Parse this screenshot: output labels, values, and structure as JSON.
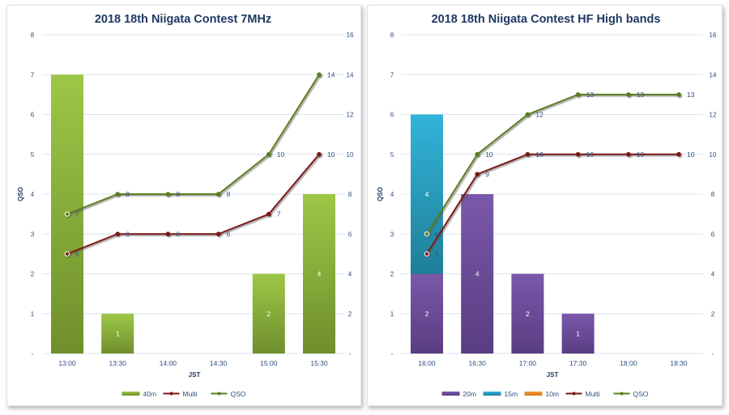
{
  "chart_data": [
    {
      "type": "bar",
      "title": "2018 18th Niigata Contest 7MHz",
      "xlabel": "JST",
      "ylabel": "QSO",
      "ylim": [
        0,
        8
      ],
      "y2lim": [
        0,
        16
      ],
      "yticks": [
        "-",
        "1",
        "2",
        "3",
        "4",
        "5",
        "6",
        "7",
        "8"
      ],
      "y2ticks": [
        "-",
        "2",
        "4",
        "6",
        "8",
        "10",
        "12",
        "14",
        "16"
      ],
      "grid": true,
      "legend_position": "bottom",
      "categories": [
        "13:00",
        "13:30",
        "14:00",
        "14:30",
        "15:00",
        "15:30"
      ],
      "bar_series": [
        {
          "name": "40m",
          "color": "#8db53a",
          "values": [
            7,
            1,
            0,
            0,
            2,
            4
          ]
        }
      ],
      "line_series": [
        {
          "name": "Multi",
          "color": "#7b1515",
          "axis": "secondary",
          "values": [
            5,
            6,
            6,
            6,
            7,
            10
          ]
        },
        {
          "name": "QSO",
          "color": "#5a7d1e",
          "axis": "secondary",
          "values": [
            7,
            8,
            8,
            8,
            10,
            14
          ]
        }
      ]
    },
    {
      "type": "bar",
      "title": "2018 18th Niigata Contest HF High bands",
      "xlabel": "JST",
      "ylabel": "QSO",
      "ylim": [
        0,
        8
      ],
      "y2lim": [
        0,
        16
      ],
      "yticks": [
        "-",
        "1",
        "2",
        "3",
        "4",
        "5",
        "6",
        "7",
        "8"
      ],
      "y2ticks": [
        "-",
        "2",
        "4",
        "6",
        "8",
        "10",
        "12",
        "14",
        "16"
      ],
      "grid": true,
      "legend_position": "bottom",
      "stacked": true,
      "categories": [
        "16:00",
        "16:30",
        "17:00",
        "17:30",
        "18:00",
        "18:30"
      ],
      "bar_series": [
        {
          "name": "20m",
          "color": "#6a4c9c",
          "values": [
            2,
            4,
            2,
            1,
            0,
            0
          ]
        },
        {
          "name": "15m",
          "color": "#2aa6c8",
          "values": [
            4,
            0,
            0,
            0,
            0,
            0
          ]
        },
        {
          "name": "10m",
          "color": "#f08a24",
          "values": [
            0,
            0,
            0,
            0,
            0,
            0
          ]
        }
      ],
      "line_series": [
        {
          "name": "Multi",
          "color": "#7b1515",
          "axis": "secondary",
          "values": [
            5,
            9,
            10,
            10,
            10,
            10
          ]
        },
        {
          "name": "QSO",
          "color": "#5a7d1e",
          "axis": "secondary",
          "values": [
            6,
            10,
            12,
            13,
            13,
            13
          ]
        }
      ]
    }
  ]
}
